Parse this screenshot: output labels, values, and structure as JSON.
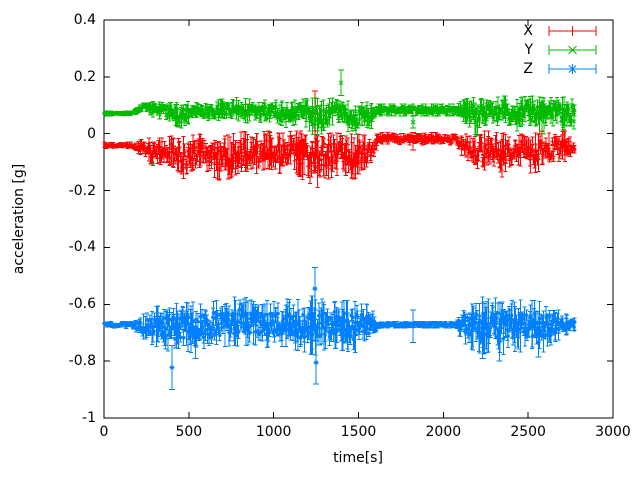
{
  "chart_data": {
    "type": "scatter",
    "style": "errorbars",
    "title": "",
    "xlabel": "time[s]",
    "ylabel": "acceleration [g]",
    "xlim": [
      0,
      3000
    ],
    "ylim": [
      -1,
      0.4
    ],
    "xticks": [
      0,
      500,
      1000,
      1500,
      2000,
      2500,
      3000
    ],
    "xtick_labels": [
      "0",
      "500",
      "1000",
      "1500",
      "2000",
      "2500",
      "3000"
    ],
    "yticks": [
      0.4,
      0.2,
      0,
      -0.2,
      -0.4,
      -0.6,
      -0.8,
      -1
    ],
    "ytick_labels": [
      "0.4",
      "0.2",
      "0",
      "-0.2",
      "-0.4",
      "-0.6",
      "-0.8",
      "-1"
    ],
    "grid": false,
    "legend_position": "top-right-inside",
    "background_color": "#ffffff",
    "axis_color": "#000000",
    "x_data_start": 0,
    "x_data_end": 2776,
    "series": [
      {
        "name": "X",
        "color": "#ff0000",
        "marker": "plus",
        "center_level": -0.05,
        "band": [
          [
            0,
            -0.052,
            -0.03
          ],
          [
            160,
            -0.052,
            -0.03
          ],
          [
            230,
            -0.08,
            -0.02
          ],
          [
            280,
            -0.11,
            -0.012
          ],
          [
            340,
            -0.12,
            -0.015
          ],
          [
            400,
            -0.11,
            -0.008
          ],
          [
            460,
            -0.16,
            -0.01
          ],
          [
            520,
            -0.15,
            -0.005
          ],
          [
            580,
            -0.12,
            0.0
          ],
          [
            640,
            -0.15,
            -0.005
          ],
          [
            700,
            -0.17,
            -0.01
          ],
          [
            760,
            -0.15,
            0.0
          ],
          [
            820,
            -0.13,
            0.008
          ],
          [
            900,
            -0.14,
            0.0
          ],
          [
            960,
            -0.12,
            0.01
          ],
          [
            1040,
            -0.14,
            0.0
          ],
          [
            1120,
            -0.13,
            0.01
          ],
          [
            1200,
            -0.18,
            0.008
          ],
          [
            1260,
            -0.19,
            0.015
          ],
          [
            1320,
            -0.16,
            0.01
          ],
          [
            1400,
            -0.14,
            0.015
          ],
          [
            1470,
            -0.16,
            0.0
          ],
          [
            1540,
            -0.14,
            -0.005
          ],
          [
            1585,
            -0.1,
            -0.015
          ],
          [
            1615,
            -0.04,
            0.005
          ],
          [
            2070,
            -0.04,
            0.005
          ],
          [
            2110,
            -0.08,
            -0.005
          ],
          [
            2160,
            -0.11,
            0.005
          ],
          [
            2220,
            -0.14,
            0.01
          ],
          [
            2280,
            -0.12,
            0.01
          ],
          [
            2340,
            -0.155,
            0.0
          ],
          [
            2400,
            -0.13,
            0.01
          ],
          [
            2460,
            -0.12,
            0.012
          ],
          [
            2520,
            -0.14,
            0.005
          ],
          [
            2580,
            -0.13,
            0.01
          ],
          [
            2640,
            -0.11,
            0.0
          ],
          [
            2700,
            -0.1,
            0.01
          ],
          [
            2776,
            -0.09,
            0.005
          ]
        ],
        "outliers": [
          [
            1245,
            -0.13,
            0.15
          ],
          [
            1822,
            -0.058,
            0.005
          ]
        ]
      },
      {
        "name": "Y",
        "color": "#00bb00",
        "marker": "cross",
        "center_level": 0.08,
        "band": [
          [
            0,
            0.062,
            0.08
          ],
          [
            160,
            0.062,
            0.08
          ],
          [
            200,
            0.07,
            0.095
          ],
          [
            230,
            0.078,
            0.112
          ],
          [
            280,
            0.06,
            0.115
          ],
          [
            340,
            0.05,
            0.118
          ],
          [
            400,
            0.042,
            0.112
          ],
          [
            455,
            0.012,
            0.108
          ],
          [
            520,
            0.05,
            0.118
          ],
          [
            600,
            0.035,
            0.112
          ],
          [
            700,
            0.05,
            0.122
          ],
          [
            800,
            0.045,
            0.128
          ],
          [
            900,
            0.03,
            0.118
          ],
          [
            1000,
            0.045,
            0.12
          ],
          [
            1080,
            0.02,
            0.112
          ],
          [
            1160,
            0.04,
            0.122
          ],
          [
            1240,
            -0.008,
            0.126
          ],
          [
            1300,
            0.002,
            0.118
          ],
          [
            1360,
            0.03,
            0.128
          ],
          [
            1420,
            0.028,
            0.118
          ],
          [
            1470,
            -0.03,
            0.112
          ],
          [
            1520,
            0.03,
            0.118
          ],
          [
            1565,
            0.0,
            0.108
          ],
          [
            1610,
            0.062,
            0.104
          ],
          [
            2070,
            0.062,
            0.104
          ],
          [
            2105,
            0.05,
            0.115
          ],
          [
            2160,
            0.02,
            0.128
          ],
          [
            2205,
            -0.018,
            0.128
          ],
          [
            2250,
            0.03,
            0.138
          ],
          [
            2300,
            0.01,
            0.128
          ],
          [
            2360,
            0.03,
            0.133
          ],
          [
            2420,
            0.0,
            0.124
          ],
          [
            2480,
            0.04,
            0.13
          ],
          [
            2540,
            0.01,
            0.133
          ],
          [
            2600,
            -0.012,
            0.124
          ],
          [
            2650,
            0.03,
            0.128
          ],
          [
            2700,
            0.01,
            0.128
          ],
          [
            2776,
            0.012,
            0.132
          ]
        ],
        "outliers": [
          [
            1397,
            0.135,
            0.224
          ],
          [
            1822,
            0.02,
            0.062
          ]
        ]
      },
      {
        "name": "Z",
        "color": "#0080ff",
        "marker": "star",
        "center_level": -0.672,
        "band": [
          [
            0,
            -0.685,
            -0.66
          ],
          [
            160,
            -0.685,
            -0.66
          ],
          [
            230,
            -0.72,
            -0.635
          ],
          [
            280,
            -0.74,
            -0.615
          ],
          [
            340,
            -0.758,
            -0.602
          ],
          [
            400,
            -0.768,
            -0.6
          ],
          [
            460,
            -0.76,
            -0.595
          ],
          [
            520,
            -0.77,
            -0.592
          ],
          [
            580,
            -0.755,
            -0.6
          ],
          [
            640,
            -0.758,
            -0.585
          ],
          [
            700,
            -0.75,
            -0.59
          ],
          [
            760,
            -0.745,
            -0.576
          ],
          [
            820,
            -0.748,
            -0.565
          ],
          [
            880,
            -0.74,
            -0.59
          ],
          [
            940,
            -0.755,
            -0.585
          ],
          [
            1000,
            -0.745,
            -0.59
          ],
          [
            1060,
            -0.75,
            -0.58
          ],
          [
            1120,
            -0.76,
            -0.585
          ],
          [
            1180,
            -0.768,
            -0.58
          ],
          [
            1240,
            -0.78,
            -0.568
          ],
          [
            1300,
            -0.76,
            -0.585
          ],
          [
            1360,
            -0.755,
            -0.58
          ],
          [
            1420,
            -0.765,
            -0.585
          ],
          [
            1480,
            -0.77,
            -0.59
          ],
          [
            1540,
            -0.75,
            -0.595
          ],
          [
            1580,
            -0.722,
            -0.618
          ],
          [
            1620,
            -0.684,
            -0.66
          ],
          [
            2070,
            -0.684,
            -0.66
          ],
          [
            2110,
            -0.73,
            -0.618
          ],
          [
            2170,
            -0.76,
            -0.59
          ],
          [
            2230,
            -0.778,
            -0.575
          ],
          [
            2290,
            -0.76,
            -0.585
          ],
          [
            2330,
            -0.788,
            -0.566
          ],
          [
            2390,
            -0.76,
            -0.58
          ],
          [
            2450,
            -0.77,
            -0.585
          ],
          [
            2510,
            -0.75,
            -0.585
          ],
          [
            2570,
            -0.778,
            -0.59
          ],
          [
            2630,
            -0.745,
            -0.6
          ],
          [
            2690,
            -0.72,
            -0.625
          ],
          [
            2740,
            -0.7,
            -0.64
          ],
          [
            2776,
            -0.692,
            -0.648
          ]
        ],
        "outliers": [
          [
            400,
            -0.9,
            -0.745
          ],
          [
            540,
            -0.79,
            -0.7
          ],
          [
            1243,
            -0.62,
            -0.47
          ],
          [
            1250,
            -0.88,
            -0.73
          ],
          [
            1822,
            -0.735,
            -0.62
          ],
          [
            2230,
            -0.79,
            -0.67
          ],
          [
            2330,
            -0.8,
            -0.66
          ],
          [
            2560,
            -0.785,
            -0.68
          ]
        ]
      }
    ]
  }
}
